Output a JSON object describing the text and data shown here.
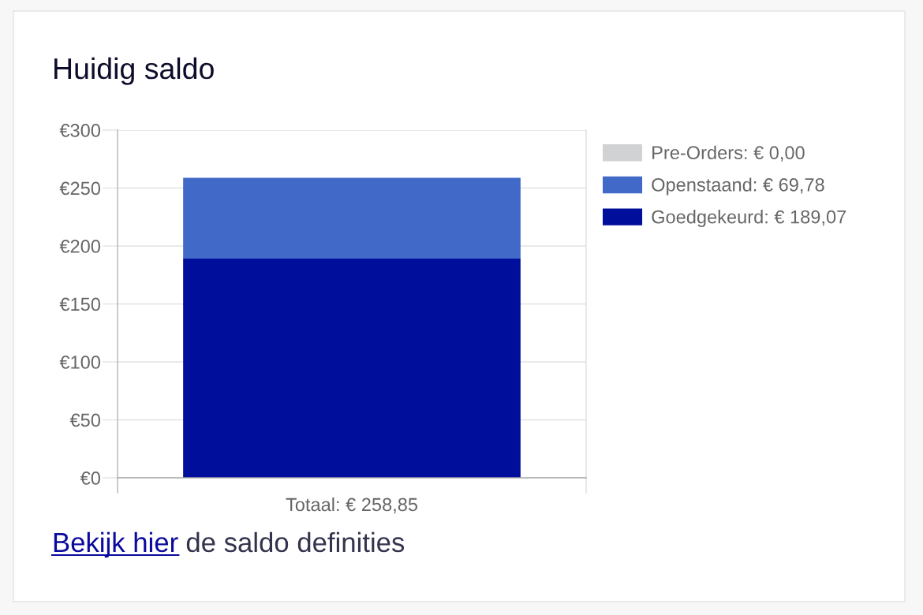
{
  "chart_data": {
    "type": "bar",
    "title": "Huidig saldo",
    "categories": [
      "Totaal: € 258,85"
    ],
    "stacked": true,
    "series": [
      {
        "name": "Goedgekeurd: € 189,07",
        "color": "#000e9c",
        "values": [
          189.07
        ]
      },
      {
        "name": "Openstaand: € 69,78",
        "color": "#4169c7",
        "values": [
          69.78
        ]
      },
      {
        "name": "Pre-Orders: € 0,00",
        "color": "#d1d2d4",
        "values": [
          0
        ]
      }
    ],
    "ylim": [
      0,
      300
    ],
    "yticks": [
      {
        "value": 0,
        "label": "€0"
      },
      {
        "value": 50,
        "label": "€50"
      },
      {
        "value": 100,
        "label": "€100"
      },
      {
        "value": 150,
        "label": "€150"
      },
      {
        "value": 200,
        "label": "€200"
      },
      {
        "value": 250,
        "label": "€250"
      },
      {
        "value": 300,
        "label": "€300"
      }
    ],
    "grid": "y",
    "legend": "right",
    "annotations": [
      "Bekijk hier",
      "de saldo definities"
    ]
  }
}
